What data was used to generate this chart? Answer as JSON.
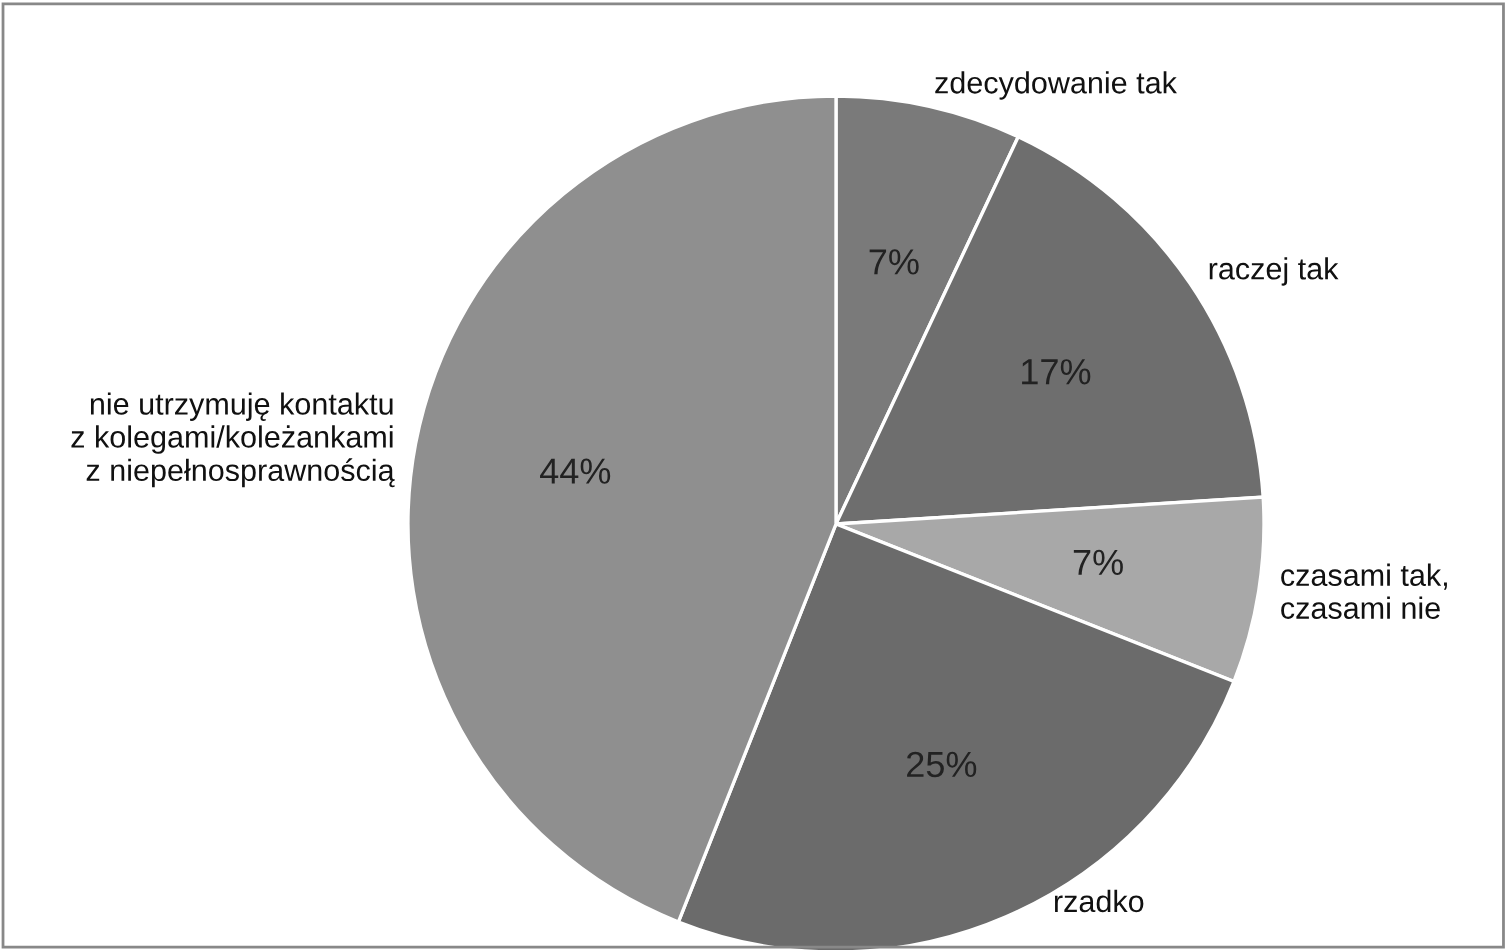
{
  "chart_data": {
    "type": "pie",
    "categories": [
      "zdecydowanie tak",
      "raczej tak",
      "czasami tak,\nczasami nie",
      "rzadko",
      "nie utrzymuję kontaktu\nz kolegami/koleżankami\nz niepełnosprawnością"
    ],
    "values": [
      7,
      17,
      7,
      25,
      44
    ],
    "value_labels": [
      "7%",
      "17%",
      "7%",
      "25%",
      "44%"
    ],
    "colors": [
      "#7a7a7a",
      "#6e6e6e",
      "#a8a8a8",
      "#6b6b6b",
      "#8f8f8f"
    ],
    "legend": false
  }
}
